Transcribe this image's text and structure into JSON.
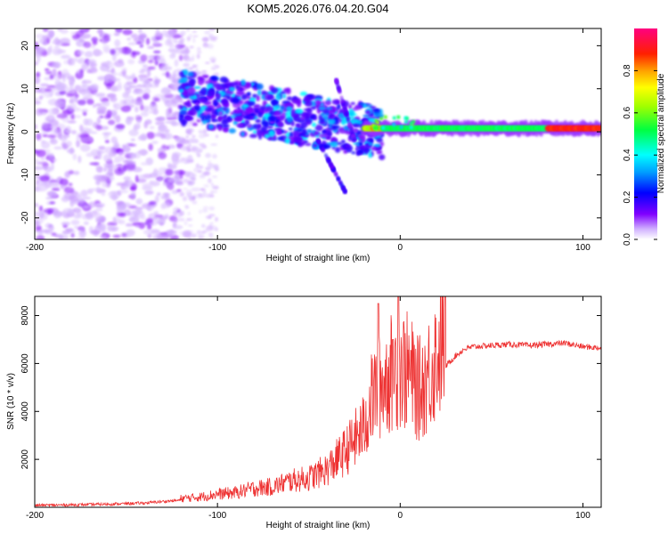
{
  "title": "KOM5.2026.076.04.20.G04",
  "chart_data": [
    {
      "type": "heatmap",
      "title": "KOM5.2026.076.04.20.G04",
      "xlabel": "Height of straight line (km)",
      "ylabel": "Frequency (Hz)",
      "xlim": [
        -200,
        110
      ],
      "ylim": [
        -25,
        24
      ],
      "xticks": [
        -200,
        -100,
        0,
        100
      ],
      "yticks": [
        -20,
        -10,
        0,
        10,
        20
      ],
      "colorbar": {
        "label": "Normalized spectral amplitude",
        "range": [
          0,
          1
        ],
        "ticks": [
          "0.0",
          "0.2",
          "0.4",
          "0.6",
          "0.8"
        ],
        "tick_values": [
          0,
          0.2,
          0.4,
          0.6,
          0.8
        ],
        "colors": [
          "#ffffff",
          "#7a00ff",
          "#0000ff",
          "#00b0ff",
          "#00ffff",
          "#00ff00",
          "#ffff00",
          "#ff8000",
          "#ff0000",
          "#ff00a0"
        ]
      },
      "features": [
        {
          "name": "noise",
          "x_range": [
            -200,
            -120
          ],
          "f_range": [
            -25,
            24
          ],
          "amplitude": 0.1
        },
        {
          "name": "slanted",
          "x_range": [
            -120,
            -10
          ],
          "f_range": [
            10,
            0
          ],
          "amplitude": 0.35
        },
        {
          "name": "strong-line",
          "x_range": [
            -15,
            110
          ],
          "f_center": 0.8,
          "amplitude_min": 0.5,
          "amplitude_max": 0.95
        }
      ]
    },
    {
      "type": "line",
      "xlabel": "Height of straight line (km)",
      "ylabel": "SNR (10 * v/v)",
      "xlim": [
        -200,
        110
      ],
      "ylim": [
        0,
        8800
      ],
      "xticks": [
        -200,
        -100,
        0,
        100
      ],
      "yticks": [
        2000,
        4000,
        6000,
        8000
      ],
      "color": "#ee3333",
      "series": [
        {
          "name": "SNR",
          "x": [
            -200,
            -180,
            -160,
            -140,
            -120,
            -110,
            -100,
            -90,
            -80,
            -70,
            -60,
            -50,
            -40,
            -30,
            -20,
            -15,
            -10,
            -5,
            0,
            5,
            10,
            15,
            20,
            25,
            30,
            35,
            40,
            50,
            60,
            70,
            80,
            90,
            100,
            110
          ],
          "y": [
            80,
            100,
            130,
            180,
            300,
            350,
            450,
            500,
            650,
            700,
            900,
            1000,
            1300,
            1900,
            2700,
            3800,
            4200,
            4600,
            4800,
            4600,
            4000,
            4500,
            5200,
            5900,
            6300,
            6600,
            6700,
            6750,
            6800,
            6750,
            6800,
            6850,
            6700,
            6650
          ]
        }
      ],
      "peaks": [
        {
          "x": -12,
          "y": 8500
        },
        {
          "x": -1,
          "y": 8800
        },
        {
          "x": -4,
          "y": 7000
        }
      ]
    }
  ]
}
